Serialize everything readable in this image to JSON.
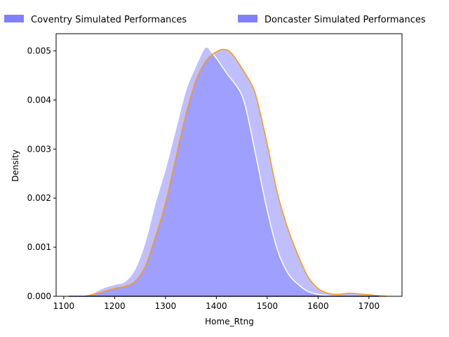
{
  "chart_data": {
    "type": "area",
    "xlabel": "Home_Rtng",
    "ylabel": "Density",
    "xlim": [
      1085,
      1765
    ],
    "ylim": [
      0,
      0.00535
    ],
    "xticks": [
      1100,
      1200,
      1300,
      1400,
      1500,
      1600,
      1700
    ],
    "xtick_labels": [
      "1100",
      "1200",
      "1300",
      "1400",
      "1500",
      "1600",
      "1700"
    ],
    "yticks": [
      0,
      0.001,
      0.002,
      0.003,
      0.004,
      0.005
    ],
    "ytick_labels": [
      "0.000",
      "0.001",
      "0.002",
      "0.003",
      "0.004",
      "0.005"
    ],
    "legend_position": "top, above plot",
    "series": [
      {
        "name": "Coventry Simulated Performances",
        "color": "#8080ff",
        "fill_opacity": 0.5,
        "line_color": "#ffffff",
        "x": [
          1140,
          1160,
          1180,
          1200,
          1220,
          1240,
          1260,
          1280,
          1300,
          1320,
          1340,
          1360,
          1375,
          1383,
          1390,
          1400,
          1420,
          1440,
          1450,
          1460,
          1480,
          1500,
          1520,
          1540,
          1560,
          1580,
          1600,
          1620,
          1640
        ],
        "values": [
          0.0,
          8e-05,
          0.00018,
          0.00024,
          0.0003,
          0.00055,
          0.0011,
          0.0019,
          0.0026,
          0.0034,
          0.0042,
          0.0047,
          0.00503,
          0.00507,
          0.00498,
          0.00485,
          0.00455,
          0.00428,
          0.0041,
          0.00375,
          0.00275,
          0.00175,
          0.00095,
          0.00048,
          0.00025,
          0.0001,
          4e-05,
          1e-05,
          0.0
        ]
      },
      {
        "name": "Doncaster Simulated Performances",
        "color": "#8080ff",
        "fill_opacity": 0.5,
        "line_color": "#ff9900",
        "x": [
          1140,
          1160,
          1180,
          1200,
          1220,
          1240,
          1260,
          1280,
          1300,
          1320,
          1340,
          1360,
          1380,
          1400,
          1415,
          1430,
          1450,
          1470,
          1480,
          1500,
          1520,
          1540,
          1560,
          1580,
          1600,
          1620,
          1640,
          1660,
          1680,
          1700,
          1720,
          1735
        ],
        "values": [
          0.0,
          4e-05,
          0.0001,
          0.00016,
          0.0002,
          0.0003,
          0.0006,
          0.0012,
          0.0019,
          0.0028,
          0.0037,
          0.0044,
          0.0048,
          0.00498,
          0.00503,
          0.00495,
          0.00465,
          0.0043,
          0.004,
          0.0031,
          0.0021,
          0.0014,
          0.00085,
          0.0004,
          0.00016,
          6e-05,
          4e-05,
          6e-05,
          5e-05,
          3e-05,
          1e-05,
          0.0
        ]
      }
    ]
  }
}
